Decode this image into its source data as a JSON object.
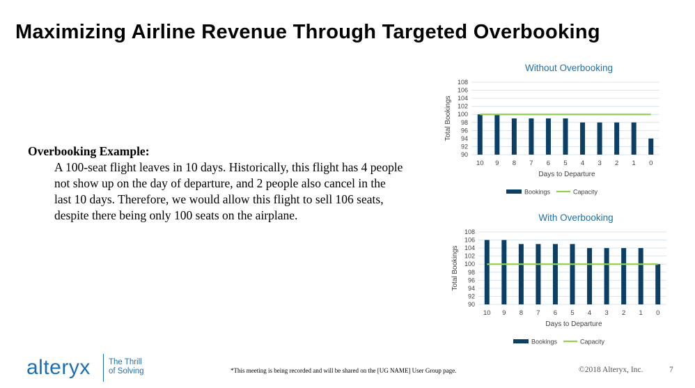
{
  "slide": {
    "title": "Maximizing Airline Revenue Through Targeted Overbooking",
    "example_heading": "Overbooking Example:",
    "example_text": "A 100-seat flight leaves in 10 days. Historically, this flight has 4 people not show up on  the day of departure, and 2 people also cancel in the last 10 days. Therefore, we would allow this flight to sell 106 seats, despite there being only 100 seats on the airplane.",
    "recording_notice": "*This meeting is being recorded and will be shared on the [UG NAME] User Group page.",
    "copyright": "©2018 Alteryx, Inc.",
    "page_number": "7"
  },
  "logo": {
    "wordmark": "alteryx",
    "tagline_line1": "The Thrill",
    "tagline_line2": "of Solving"
  },
  "colors": {
    "bar": "#0b3f66",
    "capacity": "#92d050",
    "chart_title": "#1f6fa8",
    "brand": "#1c6fb3"
  },
  "chart_data": [
    {
      "type": "bar",
      "title": "Without Overbooking",
      "xlabel": "Days to Departure",
      "ylabel": "Total Bookings",
      "categories": [
        "10",
        "9",
        "8",
        "7",
        "6",
        "5",
        "4",
        "3",
        "2",
        "1",
        "0"
      ],
      "ylim": [
        90,
        108
      ],
      "yticks": [
        "90",
        "92",
        "94",
        "96",
        "98",
        "100",
        "102",
        "104",
        "106",
        "108"
      ],
      "series": [
        {
          "name": "Bookings",
          "values": [
            100,
            100,
            99,
            99,
            99,
            99,
            98,
            98,
            98,
            98,
            94
          ]
        },
        {
          "name": "Capacity",
          "values": [
            100,
            100,
            100,
            100,
            100,
            100,
            100,
            100,
            100,
            100,
            100
          ]
        }
      ],
      "legend": [
        "Bookings",
        "Capacity"
      ]
    },
    {
      "type": "bar",
      "title": "With Overbooking",
      "xlabel": "Days to Departure",
      "ylabel": "Total Bookings",
      "categories": [
        "10",
        "9",
        "8",
        "7",
        "6",
        "5",
        "4",
        "3",
        "2",
        "1",
        "0"
      ],
      "ylim": [
        90,
        108
      ],
      "yticks": [
        "90",
        "92",
        "94",
        "96",
        "98",
        "100",
        "102",
        "104",
        "106",
        "108"
      ],
      "series": [
        {
          "name": "Bookings",
          "values": [
            106,
            106,
            105,
            105,
            105,
            105,
            104,
            104,
            104,
            104,
            100
          ]
        },
        {
          "name": "Capacity",
          "values": [
            100,
            100,
            100,
            100,
            100,
            100,
            100,
            100,
            100,
            100,
            100
          ]
        }
      ],
      "legend": [
        "Bookings",
        "Capacity"
      ]
    }
  ]
}
